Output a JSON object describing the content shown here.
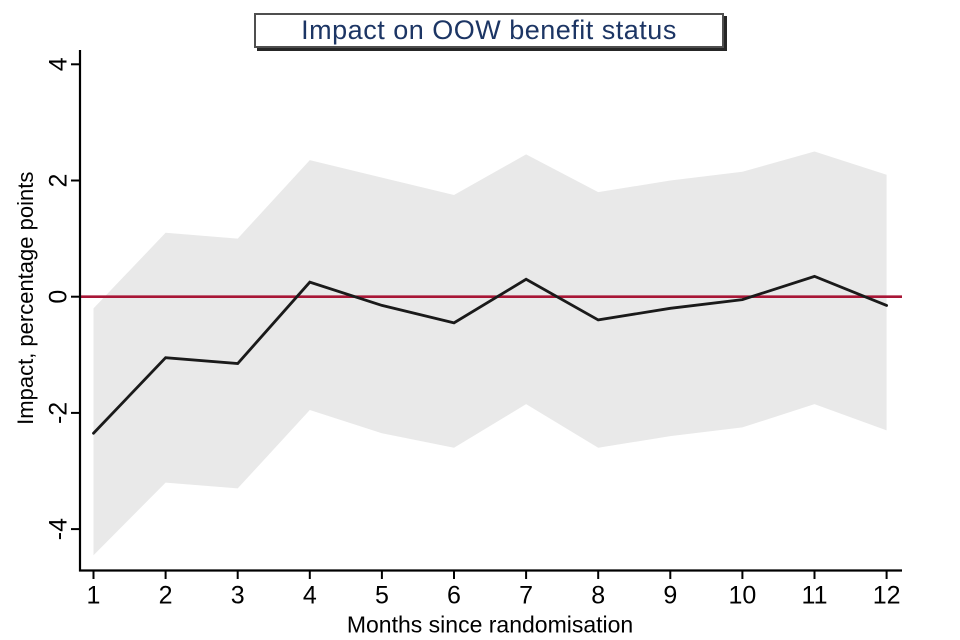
{
  "chart_title": "Impact on OOW benefit status",
  "chart_data": {
    "type": "line",
    "title": "Impact on OOW benefit status",
    "xlabel": "Months since randomisation",
    "ylabel": "Impact, percentage points",
    "x": [
      1,
      2,
      3,
      4,
      5,
      6,
      7,
      8,
      9,
      10,
      11,
      12
    ],
    "series": [
      {
        "name": "impact-estimate",
        "role": "line",
        "color": "#1a1a1a",
        "values": [
          -2.35,
          -1.05,
          -1.15,
          0.25,
          -0.15,
          -0.45,
          0.3,
          -0.4,
          -0.2,
          -0.05,
          0.35,
          -0.15
        ]
      },
      {
        "name": "confidence-band-upper",
        "role": "band-upper",
        "values": [
          -0.2,
          1.1,
          1.0,
          2.35,
          2.05,
          1.75,
          2.45,
          1.8,
          2.0,
          2.15,
          2.5,
          2.1
        ]
      },
      {
        "name": "confidence-band-lower",
        "role": "band-lower",
        "values": [
          -4.45,
          -3.2,
          -3.3,
          -1.95,
          -2.35,
          -2.6,
          -1.85,
          -2.6,
          -2.4,
          -2.25,
          -1.85,
          -2.3
        ]
      }
    ],
    "reference_line": {
      "y": 0,
      "color": "#a81636"
    },
    "band_color": "#e9e9e9",
    "axis_color": "#000000",
    "tick_label_color": "#000000",
    "title_color": "#1c3564",
    "xticks": [
      1,
      2,
      3,
      4,
      5,
      6,
      7,
      8,
      9,
      10,
      11,
      12
    ],
    "yticks": [
      4,
      2,
      0,
      -2,
      -4
    ],
    "xlim": [
      1,
      12
    ],
    "ylim": [
      -4.7,
      4.25
    ],
    "grid": false,
    "legend": false
  }
}
